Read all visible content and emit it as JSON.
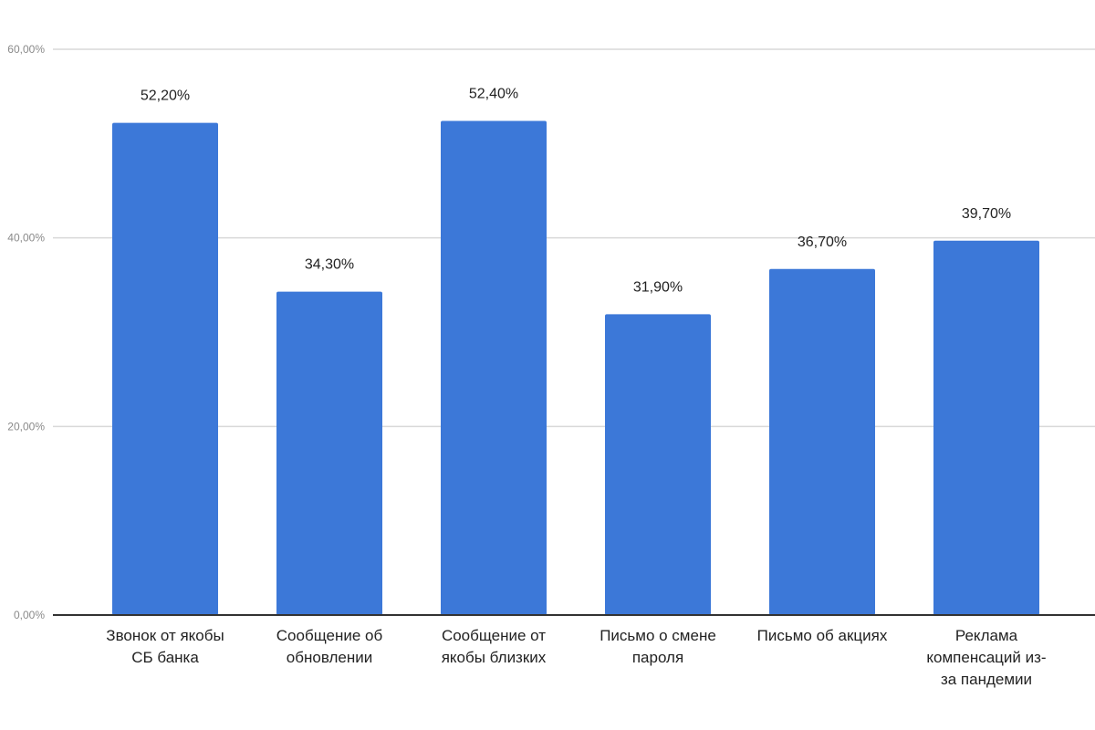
{
  "chart_data": {
    "type": "bar",
    "categories": [
      "Звонок от якобы СБ банка",
      "Сообщение об обновлении",
      "Сообщение от якобы близких",
      "Письмо о смене пароля",
      "Письмо об акциях",
      "Реклама компенсаций из-за пандемии"
    ],
    "category_label_lines": [
      [
        "Звонок от якобы",
        "СБ банка"
      ],
      [
        "Сообщение об",
        "обновлении"
      ],
      [
        "Сообщение от",
        "якобы близких"
      ],
      [
        "Письмо о смене",
        "пароля"
      ],
      [
        "Письмо об акциях"
      ],
      [
        "Реклама",
        "компенсаций из-",
        "за пандемии"
      ]
    ],
    "values": [
      52.2,
      34.3,
      52.4,
      31.9,
      36.7,
      39.7
    ],
    "data_labels": [
      "52,20%",
      "34,30%",
      "52,40%",
      "31,90%",
      "36,70%",
      "39,70%"
    ],
    "y_ticks": [
      0,
      20,
      40,
      60
    ],
    "y_tick_labels": [
      "0,00%",
      "20,00%",
      "40,00%",
      "60,00%"
    ],
    "ylim": [
      0,
      60
    ],
    "title": "",
    "xlabel": "",
    "ylabel": "",
    "grid": true,
    "legend": "none",
    "colors": {
      "bar": "#3c78d8",
      "grid": "#d9d9d9",
      "axis": "#333333"
    }
  }
}
